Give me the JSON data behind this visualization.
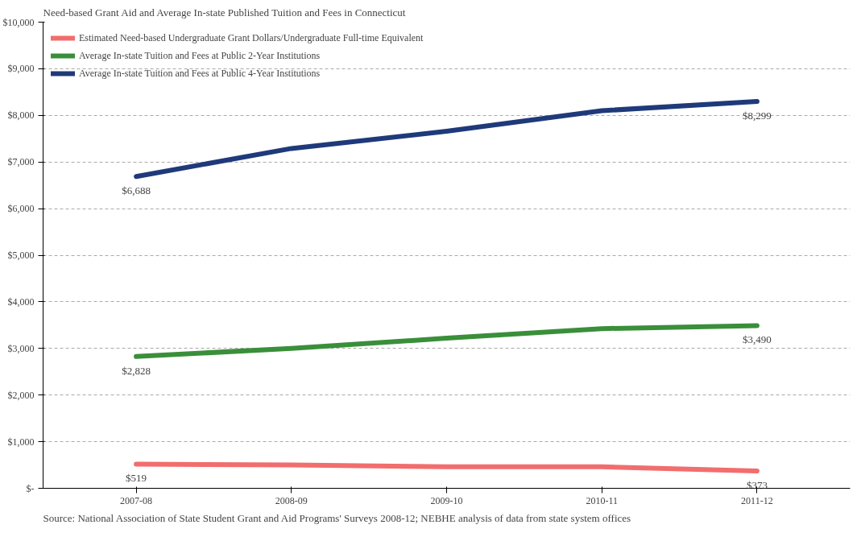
{
  "chart_data": {
    "type": "line",
    "title": "Need-based Grant Aid and Average In-state Published Tuition and Fees in Connecticut",
    "categories": [
      "2007-08",
      "2008-09",
      "2009-10",
      "2010-11",
      "2011-12"
    ],
    "series": [
      {
        "name": "Estimated Need-based Undergraduate Grant Dollars/Undergraduate Full-time Equivalent",
        "color": "#f26d6d",
        "values": [
          519,
          500,
          460,
          460,
          373
        ],
        "value_labels": [
          "$519",
          null,
          null,
          null,
          "$373"
        ]
      },
      {
        "name": "Average In-state Tuition and Fees at Public 2-Year Institutions",
        "color": "#3a8f3a",
        "values": [
          2828,
          3000,
          3220,
          3425,
          3490
        ],
        "value_labels": [
          "$2,828",
          null,
          null,
          null,
          "$3,490"
        ]
      },
      {
        "name": "Average In-state Tuition and Fees at Public 4-Year Institutions",
        "color": "#1f3a7a",
        "values": [
          6688,
          7290,
          7660,
          8100,
          8299
        ],
        "value_labels": [
          "$6,688",
          null,
          null,
          null,
          "$8,299"
        ]
      }
    ],
    "ylim": [
      0,
      10000
    ],
    "yticks": [
      {
        "value": 0,
        "label": "$-"
      },
      {
        "value": 1000,
        "label": "$1,000"
      },
      {
        "value": 2000,
        "label": "$2,000"
      },
      {
        "value": 3000,
        "label": "$3,000"
      },
      {
        "value": 4000,
        "label": "$4,000"
      },
      {
        "value": 5000,
        "label": "$5,000"
      },
      {
        "value": 6000,
        "label": "$6,000"
      },
      {
        "value": 7000,
        "label": "$7,000"
      },
      {
        "value": 8000,
        "label": "$8,000"
      },
      {
        "value": 9000,
        "label": "$9,000"
      },
      {
        "value": 10000,
        "label": "$10,000"
      }
    ],
    "grid": "y",
    "legend": "top left",
    "marker": "none",
    "line_style": "solid",
    "annotations": [
      "Source: National Association of State Student Grant and Aid Programs' Surveys 2008-12; NEBHE analysis of data from state system offices"
    ]
  }
}
